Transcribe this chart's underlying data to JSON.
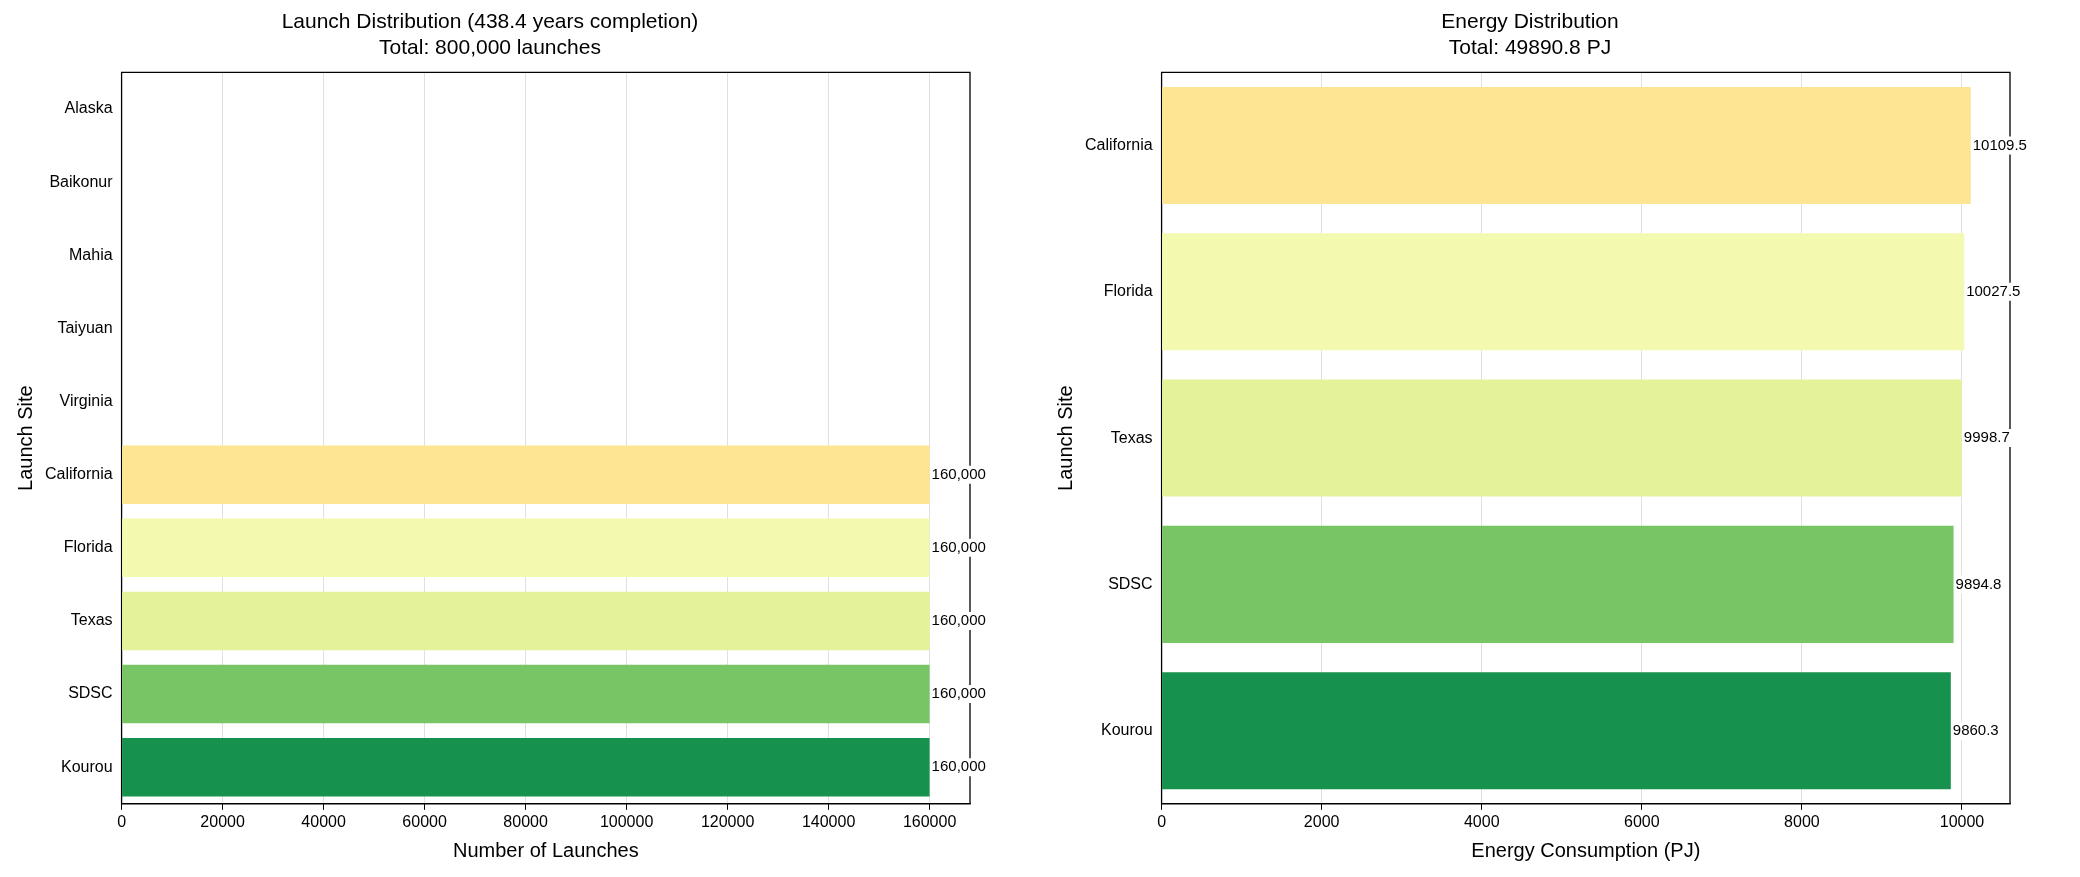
{
  "chart_data": [
    {
      "type": "bar",
      "orientation": "horizontal",
      "title": "Launch Distribution (438.4 years completion)\nTotal: 800,000 launches",
      "xlabel": "Number of Launches",
      "ylabel": "Launch Site",
      "categories": [
        "Alaska",
        "Baikonur",
        "Mahia",
        "Taiyuan",
        "Virginia",
        "California",
        "Florida",
        "Texas",
        "SDSC",
        "Kourou"
      ],
      "values": [
        0,
        0,
        0,
        0,
        0,
        160000,
        160000,
        160000,
        160000,
        160000
      ],
      "colors": [
        "#fee593",
        "#fee593",
        "#fee593",
        "#fee593",
        "#fee593",
        "#fee593",
        "#f4f9b0",
        "#e4f29a",
        "#78c565",
        "#17914e"
      ],
      "value_labels": [
        null,
        null,
        null,
        null,
        null,
        "160,000",
        "160,000",
        "160,000",
        "160,000",
        "160,000"
      ],
      "xlim": [
        0,
        168000
      ],
      "xticks": [
        0,
        20000,
        40000,
        60000,
        80000,
        100000,
        120000,
        140000,
        160000
      ],
      "grid": "x",
      "legend": false
    },
    {
      "type": "bar",
      "orientation": "horizontal",
      "title": "Energy Distribution\nTotal: 49890.8 PJ",
      "xlabel": "Energy Consumption (PJ)",
      "ylabel": "Launch Site",
      "categories": [
        "California",
        "Florida",
        "Texas",
        "SDSC",
        "Kourou"
      ],
      "values": [
        10109.5,
        10027.5,
        9998.7,
        9894.8,
        9860.3
      ],
      "colors": [
        "#fee593",
        "#f4f9b0",
        "#e4f29a",
        "#78c565",
        "#17914e"
      ],
      "data_labels": true,
      "xlim": [
        0,
        10600
      ],
      "xticks": [
        0,
        2000,
        4000,
        6000,
        8000,
        10000
      ],
      "grid": "x",
      "legend": false
    }
  ]
}
